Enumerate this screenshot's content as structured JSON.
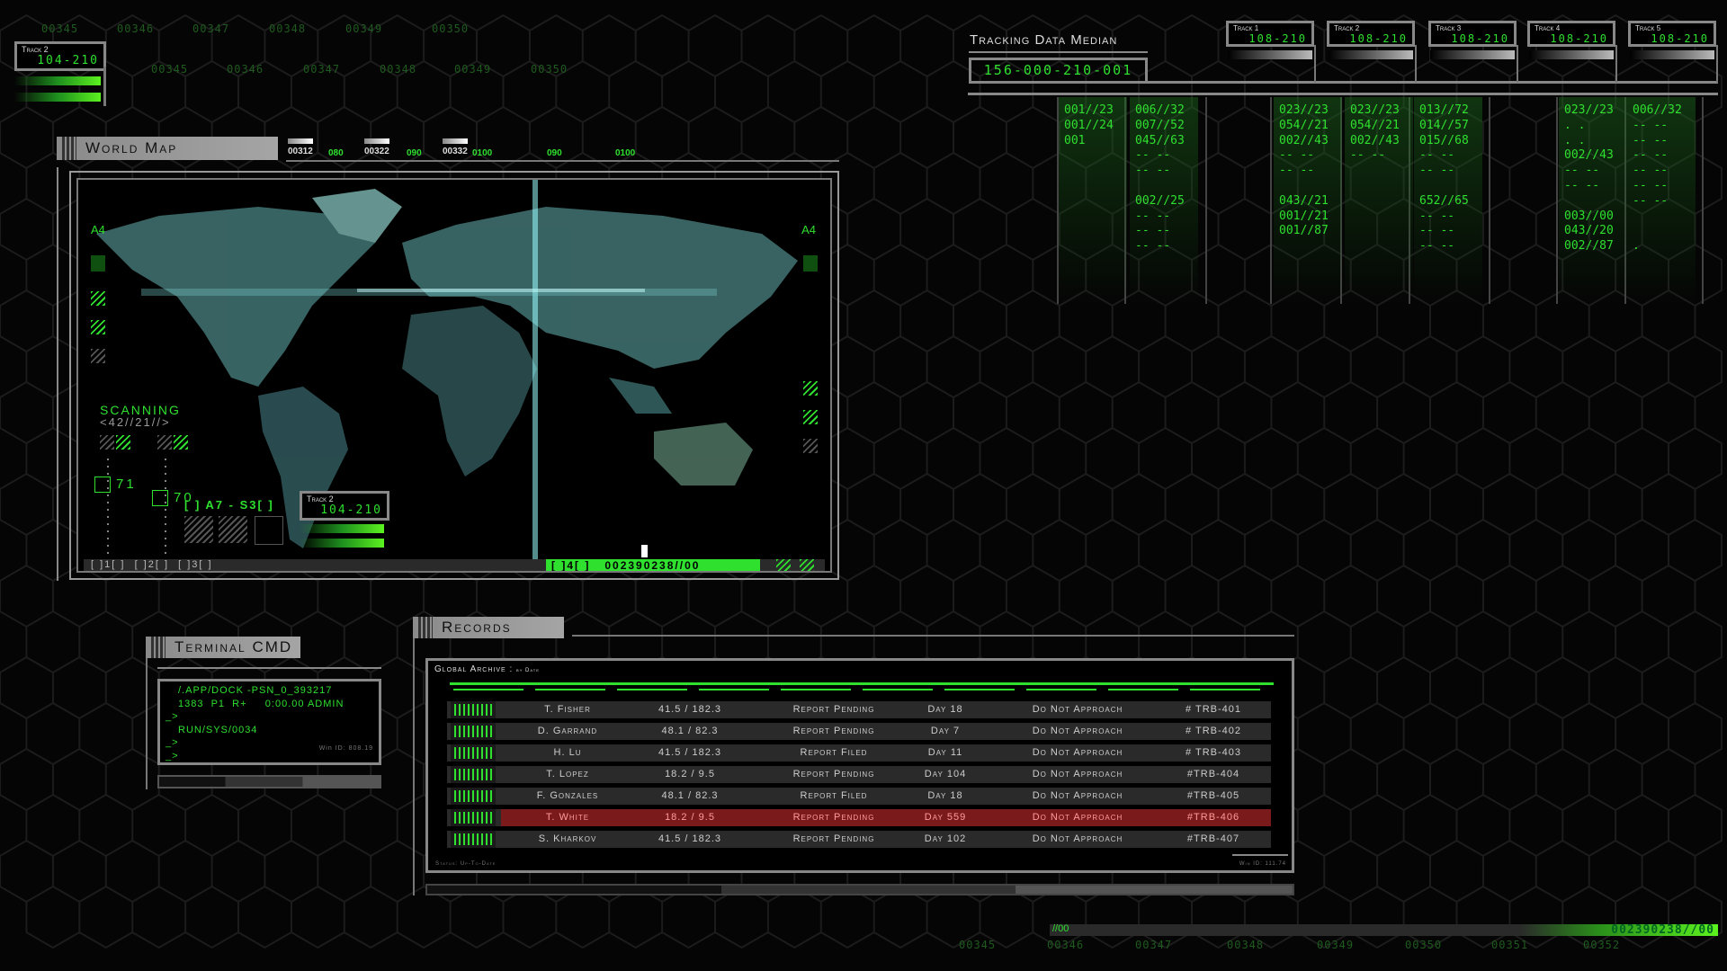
{
  "colors": {
    "accent": "#2fe02f",
    "highlight_row": "#7a1a1a",
    "panel_header": "#9a9a9a"
  },
  "top_numbers": {
    "row1": [
      "00345",
      "00346",
      "00347",
      "00348",
      "00349",
      "00350"
    ],
    "row2": [
      "00345",
      "00346",
      "00347",
      "00348",
      "00349",
      "00350"
    ]
  },
  "top_track": {
    "label": "Track 2",
    "value": "104-210"
  },
  "world_map": {
    "title": "World Map",
    "ticks": [
      {
        "label": "00312",
        "type": "white"
      },
      {
        "label": "080",
        "type": "green"
      },
      {
        "label": "00322",
        "type": "white"
      },
      {
        "label": "090",
        "type": "green"
      },
      {
        "label": "00332",
        "type": "white"
      },
      {
        "label": "0100",
        "type": "green"
      },
      {
        "label": "090",
        "type": "green"
      },
      {
        "label": "0100",
        "type": "green"
      }
    ],
    "label_left": "A4",
    "label_right": "A4",
    "scanning": "SCANNING",
    "scan_code": "<42//21//>",
    "marker1": "71",
    "marker2": "70",
    "sector": "[ ] A7 - S3[ ]",
    "inset_track": {
      "label": "Track 2",
      "value": "104-210"
    },
    "channels": "[ ]1[ ]  [ ]2[ ]  [ ]3[ ]",
    "active_channel": "[ ]4[ ]",
    "active_code": "002390238//00"
  },
  "terminal": {
    "title": "Terminal CMD",
    "lines": [
      "/.APP/DOCK -PSN_0_393217",
      "1383  P1  R+     0:00.00 ADMIN",
      "_>",
      "RUN/SYS/0034",
      "_>",
      "_>"
    ],
    "win_id": "Win ID: 808.19"
  },
  "records": {
    "title": "Records",
    "archive_title": "Global Archive",
    "archive_sub": "by Date",
    "status": "Status: Up-To-Date",
    "win_id": "Win ID: 111.74",
    "rows": [
      {
        "name": "T. Fisher",
        "coords": "41.5 / 182.3",
        "status": "Report Pending",
        "day": "Day 18",
        "action": "Do Not Approach",
        "id": "# TRB-401",
        "highlighted": false
      },
      {
        "name": "D. Garrand",
        "coords": "48.1 / 82.3",
        "status": "Report Pending",
        "day": "Day 7",
        "action": "Do Not Approach",
        "id": "# TRB-402",
        "highlighted": false
      },
      {
        "name": "H. Lu",
        "coords": "41.5 / 182.3",
        "status": "Report Filed",
        "day": "Day 11",
        "action": "Do Not Approach",
        "id": "# TRB-403",
        "highlighted": false
      },
      {
        "name": "T. Lopez",
        "coords": "18.2 / 9.5",
        "status": "Report Pending",
        "day": "Day 104",
        "action": "Do Not Approach",
        "id": "#TRB-404",
        "highlighted": false
      },
      {
        "name": "F. Gonzales",
        "coords": "48.1 / 82.3",
        "status": "Report Filed",
        "day": "Day 18",
        "action": "Do Not Approach",
        "id": "#TRB-405",
        "highlighted": false
      },
      {
        "name": "T. White",
        "coords": "18.2 / 9.5",
        "status": "Report Pending",
        "day": "Day 559",
        "action": "Do Not Approach",
        "id": "#TRB-406",
        "highlighted": true
      },
      {
        "name": "S. Kharkov",
        "coords": "41.5 / 182.3",
        "status": "Report Pending",
        "day": "Day 102",
        "action": "Do Not Approach",
        "id": "#TRB-407",
        "highlighted": false
      }
    ]
  },
  "tracking": {
    "title": "Tracking Data Median",
    "value": "156-000-210-001",
    "tracks": [
      {
        "label": "Track 1",
        "value": "108-210"
      },
      {
        "label": "Track 2",
        "value": "108-210"
      },
      {
        "label": "Track 3",
        "value": "108-210"
      },
      {
        "label": "Track 4",
        "value": "108-210"
      },
      {
        "label": "Track 5",
        "value": "108-210"
      }
    ],
    "columns": [
      "001//23\n001//24\n001",
      "006//32\n007//52\n045//63\n-- --\n-- --\n\n002//25\n-- --\n-- --\n-- --",
      "023//23\n054//21\n002//43\n-- --\n-- --\n\n043//21\n001//21\n001//87",
      "023//23\n054//21\n002//43\n-- --",
      "013//72\n014//57\n015//68\n-- --\n-- --\n\n652//65\n-- --\n-- --\n-- --",
      "023//23\n. .\n. .\n002//43\n-- --\n-- --\n\n003//00\n043//20\n002//87",
      "006//32\n-- --\n-- --\n-- --\n-- --\n-- --\n-- --\n\n\n."
    ]
  },
  "bottom": {
    "left_code": "//00",
    "right_code": "002390238//00",
    "numbers": [
      "00345",
      "00346",
      "00347",
      "00348",
      "00349",
      "00350",
      "00351",
      "00352"
    ]
  }
}
